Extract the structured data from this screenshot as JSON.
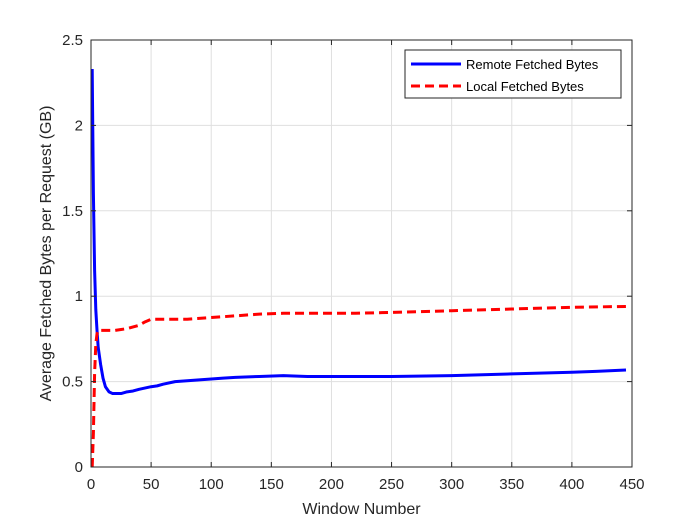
{
  "chart_data": {
    "type": "line",
    "title": "",
    "xlabel": "Window Number",
    "ylabel": "Average Fetched Bytes per Request (GB)",
    "xlim": [
      0,
      450
    ],
    "ylim": [
      0,
      2.5
    ],
    "x_ticks": [
      0,
      50,
      100,
      150,
      200,
      250,
      300,
      350,
      400,
      450
    ],
    "y_ticks": [
      0,
      0.5,
      1,
      1.5,
      2,
      2.5
    ],
    "x_tick_labels": [
      "0",
      "50",
      "100",
      "150",
      "200",
      "250",
      "300",
      "350",
      "400",
      "450"
    ],
    "y_tick_labels": [
      "0",
      "0.5",
      "1",
      "1.5",
      "2",
      "2.5"
    ],
    "grid": true,
    "legend_position": "top-right",
    "series": [
      {
        "name": "Remote Fetched Bytes",
        "color": "#0000ff",
        "style": "solid",
        "x": [
          1,
          2,
          3,
          4,
          5,
          6,
          8,
          10,
          12,
          15,
          18,
          20,
          25,
          30,
          35,
          40,
          50,
          55,
          60,
          70,
          80,
          90,
          100,
          110,
          120,
          140,
          160,
          180,
          200,
          220,
          250,
          300,
          350,
          400,
          420,
          445
        ],
        "y": [
          2.33,
          1.6,
          1.15,
          0.92,
          0.8,
          0.7,
          0.6,
          0.52,
          0.47,
          0.44,
          0.43,
          0.43,
          0.43,
          0.44,
          0.445,
          0.455,
          0.47,
          0.475,
          0.485,
          0.5,
          0.505,
          0.51,
          0.515,
          0.52,
          0.525,
          0.53,
          0.535,
          0.53,
          0.53,
          0.53,
          0.53,
          0.535,
          0.545,
          0.555,
          0.56,
          0.568
        ]
      },
      {
        "name": "Local Fetched Bytes",
        "color": "#ff0000",
        "style": "dashed",
        "x": [
          1,
          2,
          3,
          4,
          5,
          6,
          8,
          10,
          15,
          20,
          25,
          30,
          35,
          40,
          45,
          50,
          60,
          70,
          80,
          90,
          100,
          120,
          140,
          160,
          180,
          200,
          220,
          250,
          300,
          350,
          400,
          445
        ],
        "y": [
          0.0,
          0.2,
          0.55,
          0.72,
          0.78,
          0.8,
          0.8,
          0.8,
          0.8,
          0.8,
          0.805,
          0.81,
          0.82,
          0.83,
          0.85,
          0.865,
          0.865,
          0.865,
          0.865,
          0.87,
          0.875,
          0.885,
          0.895,
          0.9,
          0.9,
          0.9,
          0.9,
          0.905,
          0.915,
          0.925,
          0.935,
          0.94
        ]
      }
    ]
  }
}
